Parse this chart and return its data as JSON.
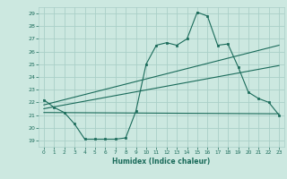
{
  "bg_color": "#cce8e0",
  "grid_color": "#aacfc8",
  "line_color": "#1a6b5a",
  "xlabel": "Humidex (Indice chaleur)",
  "xlim": [
    -0.5,
    23.5
  ],
  "ylim": [
    18.5,
    29.5
  ],
  "yticks": [
    19,
    20,
    21,
    22,
    23,
    24,
    25,
    26,
    27,
    28,
    29
  ],
  "xticks": [
    0,
    1,
    2,
    3,
    4,
    5,
    6,
    7,
    8,
    9,
    10,
    11,
    12,
    13,
    14,
    15,
    16,
    17,
    18,
    19,
    20,
    21,
    22,
    23
  ],
  "line1_x": [
    0,
    1,
    2,
    3,
    4,
    5,
    6,
    7,
    8,
    9,
    10,
    11,
    12,
    13,
    14,
    15,
    16,
    17,
    18,
    19,
    20,
    21,
    22,
    23
  ],
  "line1_y": [
    22.2,
    21.6,
    21.2,
    20.3,
    19.1,
    19.1,
    19.1,
    19.1,
    19.2,
    21.3,
    25.0,
    26.5,
    26.7,
    26.5,
    27.0,
    29.1,
    28.8,
    26.5,
    26.6,
    24.8,
    22.8,
    22.3,
    22.0,
    21.0
  ],
  "line2_x": [
    0,
    23
  ],
  "line2_y": [
    21.8,
    26.5
  ],
  "line3_x": [
    0,
    23
  ],
  "line3_y": [
    21.5,
    24.9
  ],
  "line4_x": [
    0,
    23
  ],
  "line4_y": [
    21.2,
    21.1
  ]
}
